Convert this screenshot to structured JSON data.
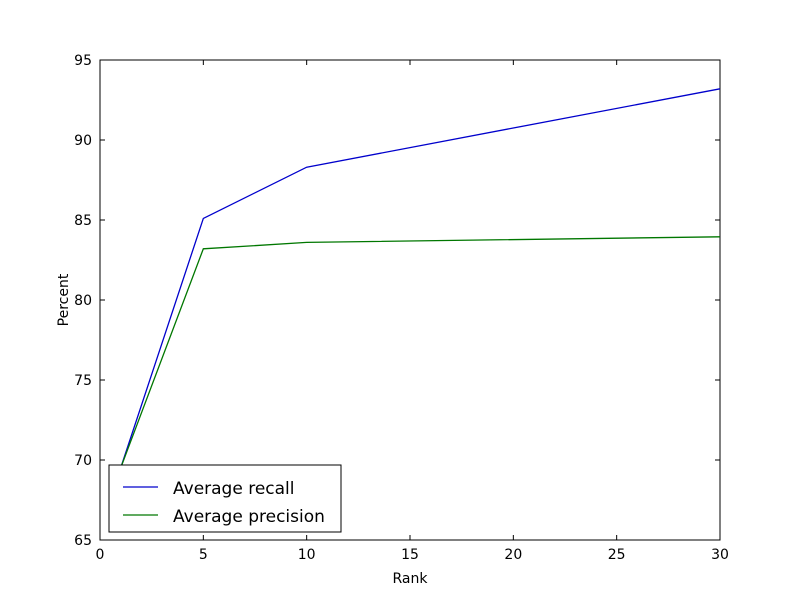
{
  "chart_data": {
    "type": "line",
    "title": "",
    "xlabel": "Rank",
    "ylabel": "Percent",
    "xlim": [
      0,
      30
    ],
    "ylim": [
      65,
      95
    ],
    "xticks": [
      0,
      5,
      10,
      15,
      20,
      25,
      30
    ],
    "yticks": [
      65,
      70,
      75,
      80,
      85,
      90,
      95
    ],
    "grid": false,
    "legend_position": "lower-left",
    "series": [
      {
        "name": "Average recall",
        "color": "#0000cc",
        "x": [
          1,
          5,
          10,
          30
        ],
        "y": [
          69.5,
          85.1,
          88.3,
          93.2
        ]
      },
      {
        "name": "Average precision",
        "color": "#007700",
        "x": [
          1,
          5,
          10,
          30
        ],
        "y": [
          69.5,
          83.2,
          83.6,
          83.95
        ]
      }
    ]
  }
}
